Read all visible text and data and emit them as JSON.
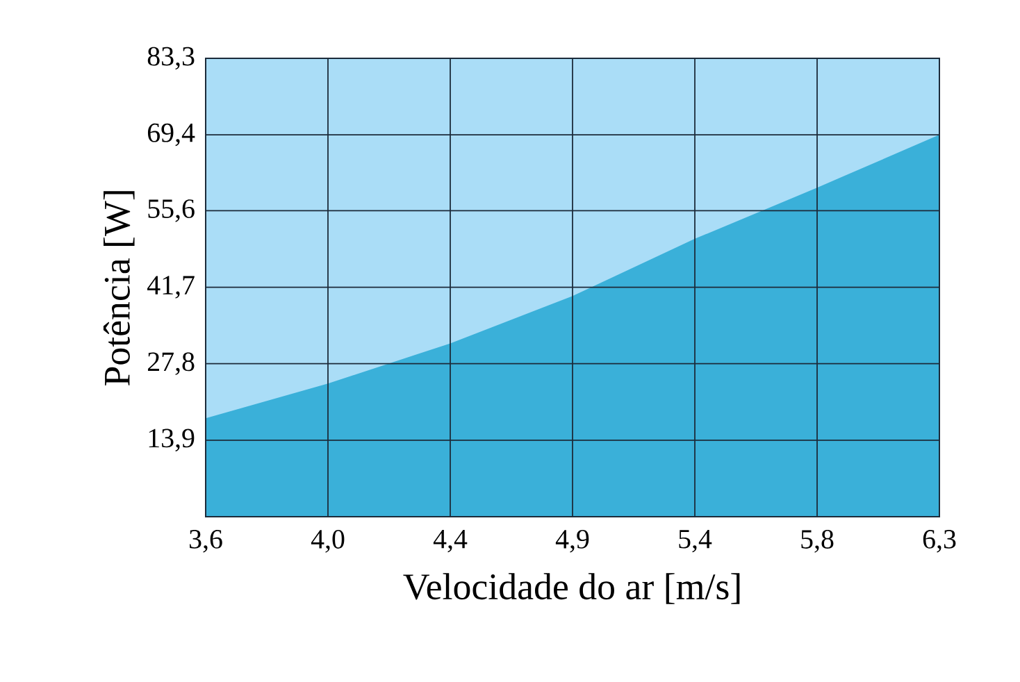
{
  "chart_data": {
    "type": "area",
    "xlabel": "Velocidade do ar [m/s]",
    "ylabel": "Potência [W]",
    "categories": [
      "3,6",
      "4,0",
      "4,4",
      "4,9",
      "5,4",
      "5,8",
      "6,3"
    ],
    "values": [
      17.9,
      24.2,
      31.5,
      40.1,
      50.5,
      59.8,
      69.4
    ],
    "color": "#3ab0d9",
    "ylim": [
      0,
      83.3
    ],
    "yticks": [
      {
        "value": 13.9,
        "label": "13,9"
      },
      {
        "value": 27.8,
        "label": "27,8"
      },
      {
        "value": 41.7,
        "label": "41,7"
      },
      {
        "value": 55.6,
        "label": "55,6"
      },
      {
        "value": 69.4,
        "label": "69,4"
      },
      {
        "value": 83.3,
        "label": "83,3"
      }
    ],
    "grid": true
  }
}
